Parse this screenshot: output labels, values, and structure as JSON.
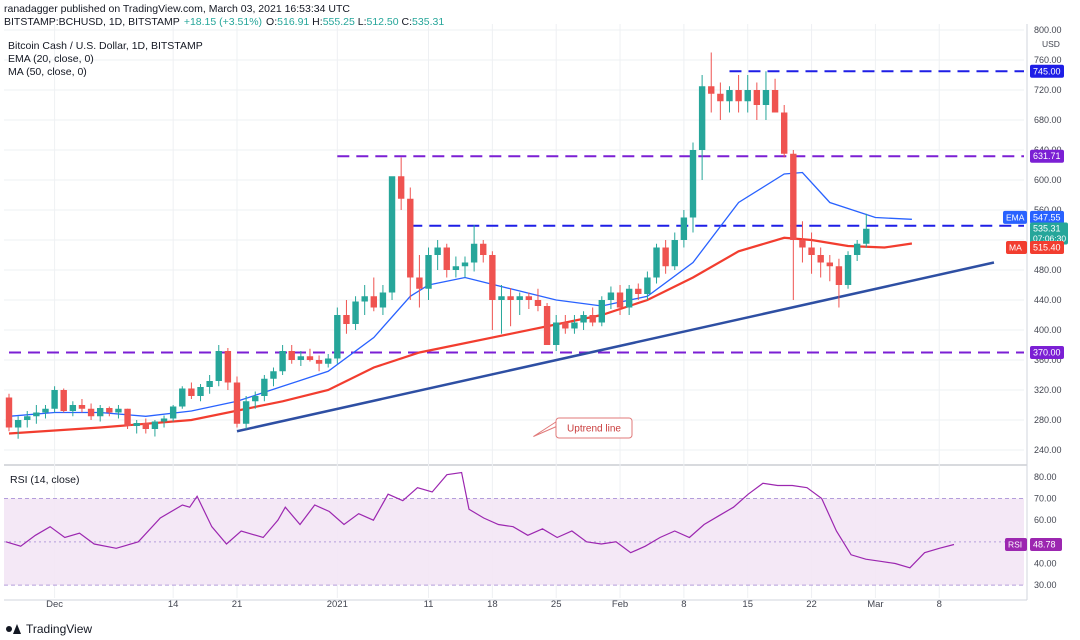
{
  "header": {
    "publisher": "ranadagger published on TradingView.com, March 03, 2021 16:53:34 UTC",
    "symbol": "BITSTAMP:BCHUSD, 1D, BITSTAMP",
    "ohlc": {
      "change": "+18.15 (+3.51%)",
      "o": "516.91",
      "h": "555.25",
      "l": "512.50",
      "c": "535.31"
    }
  },
  "legend": {
    "title": "Bitcoin Cash / U.S. Dollar, 1D, BITSTAMP",
    "ema": "EMA (20, close, 0)",
    "ma": "MA (50, close, 0)"
  },
  "rsi_panel": {
    "label": "RSI (14, close)",
    "badge": "RSI",
    "value": "48.78"
  },
  "price_badges": {
    "ema_label": "EMA",
    "ema": "547.55",
    "price": "535.31",
    "countdown": "07:06:30",
    "ma_label": "MA",
    "ma": "515.40",
    "level_745": "745.00",
    "level_631": "631.71",
    "level_539": "539.00",
    "level_370": "370.00"
  },
  "currency": "USD",
  "annotation": "Uptrend line",
  "footer": {
    "brand": "TradingView"
  },
  "colors": {
    "up": "#26a69a",
    "down": "#ef5350",
    "ema": "#2962ff",
    "ma": "#f23d2f",
    "blue_dash": "#1e1ee6",
    "purple_dash": "#7b1fd4",
    "trend": "#2e4fa3",
    "rsi": "#9c27b0"
  },
  "chart_data": [
    {
      "type": "candlestick",
      "title": "Bitcoin Cash / U.S. Dollar, 1D, BITSTAMP",
      "ylim": [
        220,
        800
      ],
      "y_ticks": [
        240,
        280,
        320,
        360,
        400,
        440,
        480,
        520,
        560,
        600,
        640,
        680,
        720,
        760,
        800
      ],
      "x_ticks": [
        {
          "label": "Dec",
          "i": 5
        },
        {
          "label": "14",
          "i": 18
        },
        {
          "label": "21",
          "i": 25
        },
        {
          "label": "2021",
          "i": 36
        },
        {
          "label": "11",
          "i": 46
        },
        {
          "label": "18",
          "i": 53
        },
        {
          "label": "25",
          "i": 60
        },
        {
          "label": "Feb",
          "i": 67
        },
        {
          "label": "8",
          "i": 74
        },
        {
          "label": "15",
          "i": 81
        },
        {
          "label": "22",
          "i": 88
        },
        {
          "label": "Mar",
          "i": 95
        },
        {
          "label": "8",
          "i": 102
        }
      ],
      "candles": [
        [
          310,
          315,
          265,
          270
        ],
        [
          270,
          285,
          255,
          280
        ],
        [
          280,
          292,
          270,
          285
        ],
        [
          285,
          300,
          275,
          290
        ],
        [
          290,
          300,
          282,
          295
        ],
        [
          295,
          325,
          290,
          320
        ],
        [
          320,
          322,
          290,
          292
        ],
        [
          292,
          305,
          285,
          300
        ],
        [
          300,
          308,
          290,
          295
        ],
        [
          295,
          302,
          280,
          285
        ],
        [
          285,
          300,
          278,
          296
        ],
        [
          296,
          298,
          285,
          290
        ],
        [
          290,
          300,
          282,
          295
        ],
        [
          295,
          295,
          268,
          272
        ],
        [
          272,
          280,
          262,
          276
        ],
        [
          276,
          282,
          262,
          268
        ],
        [
          268,
          280,
          258,
          278
        ],
        [
          278,
          286,
          270,
          282
        ],
        [
          282,
          300,
          278,
          298
        ],
        [
          298,
          325,
          295,
          322
        ],
        [
          322,
          330,
          308,
          312
        ],
        [
          312,
          328,
          305,
          324
        ],
        [
          324,
          340,
          315,
          332
        ],
        [
          332,
          380,
          325,
          372
        ],
        [
          372,
          376,
          320,
          330
        ],
        [
          330,
          338,
          270,
          275
        ],
        [
          275,
          312,
          268,
          305
        ],
        [
          305,
          318,
          295,
          312
        ],
        [
          312,
          340,
          305,
          335
        ],
        [
          335,
          350,
          325,
          345
        ],
        [
          345,
          380,
          340,
          372
        ],
        [
          372,
          380,
          355,
          360
        ],
        [
          360,
          372,
          352,
          365
        ],
        [
          365,
          375,
          358,
          360
        ],
        [
          360,
          366,
          345,
          355
        ],
        [
          355,
          368,
          350,
          362
        ],
        [
          362,
          430,
          355,
          420
        ],
        [
          420,
          440,
          395,
          408
        ],
        [
          408,
          445,
          400,
          438
        ],
        [
          438,
          460,
          420,
          445
        ],
        [
          445,
          470,
          425,
          430
        ],
        [
          430,
          460,
          420,
          450
        ],
        [
          450,
          600,
          440,
          605
        ],
        [
          605,
          630,
          560,
          575
        ],
        [
          575,
          590,
          440,
          470
        ],
        [
          470,
          500,
          430,
          455
        ],
        [
          455,
          510,
          440,
          500
        ],
        [
          500,
          520,
          480,
          510
        ],
        [
          510,
          515,
          470,
          480
        ],
        [
          480,
          498,
          470,
          485
        ],
        [
          485,
          498,
          470,
          490
        ],
        [
          490,
          540,
          478,
          515
        ],
        [
          515,
          520,
          490,
          500
        ],
        [
          500,
          505,
          400,
          440
        ],
        [
          440,
          460,
          395,
          445
        ],
        [
          445,
          456,
          405,
          440
        ],
        [
          440,
          450,
          420,
          445
        ],
        [
          445,
          450,
          428,
          440
        ],
        [
          440,
          455,
          425,
          432
        ],
        [
          432,
          436,
          380,
          380
        ],
        [
          380,
          420,
          372,
          410
        ],
        [
          410,
          420,
          395,
          402
        ],
        [
          402,
          420,
          395,
          410
        ],
        [
          410,
          425,
          400,
          420
        ],
        [
          420,
          430,
          405,
          410
        ],
        [
          410,
          445,
          405,
          440
        ],
        [
          440,
          458,
          428,
          450
        ],
        [
          450,
          460,
          420,
          430
        ],
        [
          430,
          460,
          420,
          455
        ],
        [
          455,
          462,
          440,
          448
        ],
        [
          448,
          478,
          440,
          470
        ],
        [
          470,
          515,
          462,
          510
        ],
        [
          510,
          520,
          475,
          485
        ],
        [
          485,
          530,
          480,
          520
        ],
        [
          520,
          560,
          510,
          550
        ],
        [
          550,
          650,
          530,
          640
        ],
        [
          640,
          740,
          600,
          725
        ],
        [
          725,
          770,
          690,
          715
        ],
        [
          715,
          730,
          680,
          705
        ],
        [
          705,
          725,
          690,
          720
        ],
        [
          720,
          740,
          690,
          705
        ],
        [
          705,
          740,
          690,
          720
        ],
        [
          720,
          730,
          680,
          700
        ],
        [
          700,
          745,
          680,
          720
        ],
        [
          720,
          735,
          690,
          690
        ],
        [
          690,
          700,
          630,
          635
        ],
        [
          635,
          640,
          440,
          520
        ],
        [
          520,
          545,
          490,
          510
        ],
        [
          510,
          530,
          475,
          500
        ],
        [
          500,
          510,
          470,
          490
        ],
        [
          490,
          500,
          465,
          485
        ],
        [
          485,
          495,
          430,
          460
        ],
        [
          460,
          505,
          455,
          500
        ],
        [
          500,
          520,
          492,
          515
        ],
        [
          515,
          555,
          510,
          535
        ]
      ],
      "ema": [
        [
          0,
          285
        ],
        [
          5,
          290
        ],
        [
          10,
          290
        ],
        [
          15,
          285
        ],
        [
          20,
          292
        ],
        [
          25,
          305
        ],
        [
          30,
          325
        ],
        [
          35,
          345
        ],
        [
          40,
          390
        ],
        [
          44,
          445
        ],
        [
          46,
          460
        ],
        [
          50,
          470
        ],
        [
          55,
          455
        ],
        [
          60,
          440
        ],
        [
          65,
          432
        ],
        [
          70,
          445
        ],
        [
          75,
          490
        ],
        [
          80,
          570
        ],
        [
          85,
          608
        ],
        [
          87,
          610
        ],
        [
          90,
          570
        ],
        [
          95,
          550
        ],
        [
          99,
          547.55
        ]
      ],
      "ma": [
        [
          0,
          262
        ],
        [
          10,
          270
        ],
        [
          20,
          280
        ],
        [
          30,
          305
        ],
        [
          35,
          320
        ],
        [
          40,
          350
        ],
        [
          45,
          370
        ],
        [
          55,
          395
        ],
        [
          65,
          420
        ],
        [
          70,
          440
        ],
        [
          75,
          470
        ],
        [
          80,
          505
        ],
        [
          85,
          523
        ],
        [
          88,
          520
        ],
        [
          92,
          512
        ],
        [
          96,
          510
        ],
        [
          99,
          515.4
        ]
      ],
      "levels": [
        {
          "value": 745,
          "from": 79,
          "to": 108,
          "style": "blue"
        },
        {
          "value": 631.71,
          "from": 36,
          "to": 108,
          "style": "purple"
        },
        {
          "value": 539,
          "from": 44,
          "to": 108,
          "style": "blue"
        },
        {
          "value": 370,
          "from": 0,
          "to": 108,
          "style": "purple"
        }
      ],
      "trendline": [
        [
          25,
          265
        ],
        [
          108,
          490
        ]
      ],
      "annotation": {
        "text": "Uptrend line",
        "i": 57.5,
        "y": 258
      }
    },
    {
      "type": "line",
      "title": "RSI (14, close)",
      "ylim": [
        25,
        85
      ],
      "y_ticks": [
        30,
        40,
        50,
        60,
        70,
        80
      ],
      "band": [
        30,
        70
      ],
      "values": [
        [
          0,
          50
        ],
        [
          2,
          48
        ],
        [
          4,
          53
        ],
        [
          6,
          57
        ],
        [
          8,
          52
        ],
        [
          10,
          54
        ],
        [
          12,
          49
        ],
        [
          15,
          47
        ],
        [
          18,
          50
        ],
        [
          21,
          61
        ],
        [
          24,
          67
        ],
        [
          25,
          66
        ],
        [
          26,
          71
        ],
        [
          28,
          57
        ],
        [
          30,
          49
        ],
        [
          32,
          55
        ],
        [
          35,
          52
        ],
        [
          37,
          60
        ],
        [
          38,
          66
        ],
        [
          40,
          58
        ],
        [
          42,
          67
        ],
        [
          44,
          64
        ],
        [
          46,
          58
        ],
        [
          48,
          63
        ],
        [
          50,
          60
        ],
        [
          52,
          72
        ],
        [
          54,
          69
        ],
        [
          56,
          75
        ],
        [
          58,
          73
        ],
        [
          60,
          81
        ],
        [
          62,
          82
        ],
        [
          63,
          65
        ],
        [
          65,
          61
        ],
        [
          67,
          58
        ],
        [
          69,
          57
        ],
        [
          71,
          53
        ],
        [
          73,
          56
        ],
        [
          75,
          52
        ],
        [
          77,
          55
        ],
        [
          79,
          50
        ],
        [
          81,
          49
        ],
        [
          83,
          50
        ],
        [
          85,
          45
        ],
        [
          87,
          48
        ],
        [
          89,
          52
        ],
        [
          91,
          55
        ],
        [
          93,
          52
        ],
        [
          95,
          58
        ],
        [
          97,
          62
        ],
        [
          99,
          66
        ],
        [
          101,
          72
        ],
        [
          103,
          77
        ],
        [
          105,
          76
        ],
        [
          107,
          76
        ],
        [
          109,
          75
        ],
        [
          111,
          70
        ],
        [
          113,
          55
        ],
        [
          115,
          44
        ],
        [
          117,
          42
        ],
        [
          119,
          41
        ],
        [
          121,
          40
        ],
        [
          123,
          38
        ],
        [
          125,
          45
        ],
        [
          127,
          47
        ],
        [
          129,
          48.78
        ]
      ]
    }
  ]
}
